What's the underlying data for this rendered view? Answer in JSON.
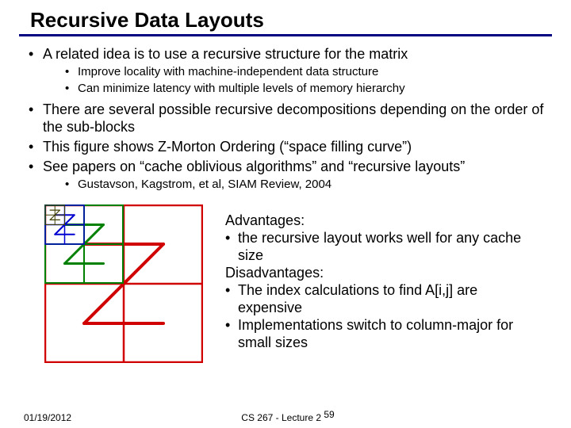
{
  "title": "Recursive Data Layouts",
  "bullets": {
    "b1": "A related idea is to use a recursive structure for the matrix",
    "b1a": "Improve locality with machine-independent data structure",
    "b1b": "Can minimize latency with multiple levels of memory hierarchy",
    "b2": "There are several possible recursive decompositions depending on the order of the sub-blocks",
    "b3": "This figure shows Z-Morton Ordering (“space filling curve”)",
    "b4": "See papers on “cache oblivious algorithms” and “recursive layouts”",
    "b4a": "Gustavson, Kagstrom, et al, SIAM Review, 2004"
  },
  "adv": {
    "h1": "Advantages:",
    "a1": "the recursive layout works well for any cache size",
    "h2": "Disadvantages:",
    "d1": "The index calculations to find A[i,j] are expensive",
    "d2": "Implementations switch to column-major for small sizes"
  },
  "footer": {
    "date": "01/19/2012",
    "center_left": "CS 267 - Lecture 2",
    "page": "59"
  },
  "figure": {
    "size": 200,
    "colors": {
      "border_outer": "#d00000",
      "border_mid": "#008000",
      "border_inner": "#0000d0",
      "border_tiny": "#404000",
      "z_big": "#d00000",
      "z_mid": "#008000",
      "z_small": "#0000d0",
      "z_tiny": "#404000",
      "bg": "#ffffff"
    },
    "stroke_outer": 2.5,
    "stroke_mid": 2,
    "stroke_small": 1.5,
    "stroke_tiny": 1
  }
}
